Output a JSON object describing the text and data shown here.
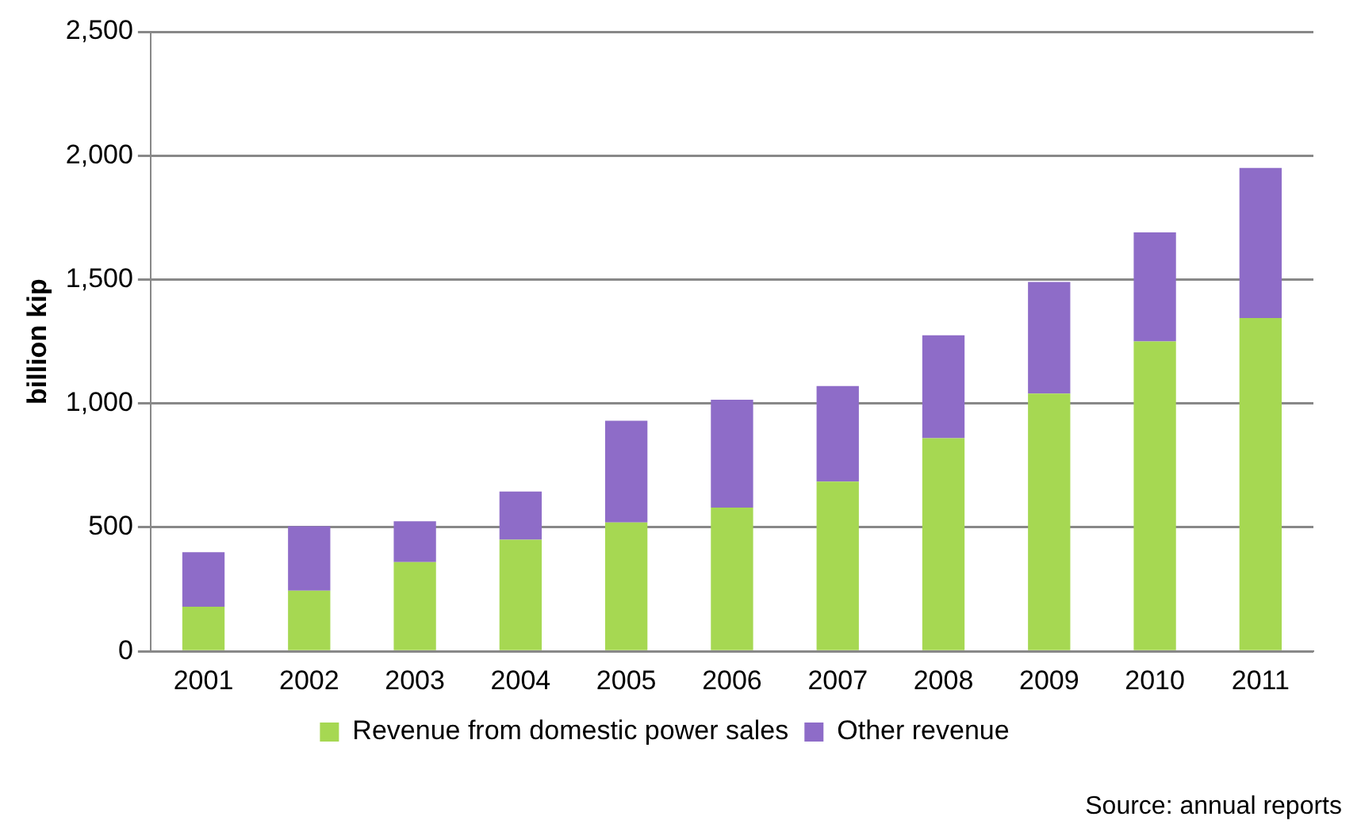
{
  "chart_data": {
    "type": "bar",
    "stacked": true,
    "ylabel": "billion kip",
    "categories": [
      "2001",
      "2002",
      "2003",
      "2004",
      "2005",
      "2006",
      "2007",
      "2008",
      "2009",
      "2010",
      "2011"
    ],
    "series": [
      {
        "name": "Revenue from domestic power sales",
        "color": "#a6d852",
        "values": [
          180,
          245,
          360,
          450,
          520,
          580,
          685,
          860,
          1040,
          1250,
          1345
        ]
      },
      {
        "name": "Other revenue",
        "color": "#8e6cc8",
        "values": [
          220,
          260,
          165,
          195,
          410,
          435,
          385,
          415,
          450,
          440,
          605
        ]
      }
    ],
    "ylim": [
      0,
      2500
    ],
    "yticks": [
      {
        "value": 0,
        "label": "0"
      },
      {
        "value": 500,
        "label": "500"
      },
      {
        "value": 1000,
        "label": "1,000"
      },
      {
        "value": 1500,
        "label": "1,500"
      },
      {
        "value": 2000,
        "label": "2,000"
      },
      {
        "value": 2500,
        "label": "2,500"
      }
    ],
    "grid": "y",
    "legend": "bottom",
    "annotations": [
      "Source: annual reports"
    ]
  }
}
